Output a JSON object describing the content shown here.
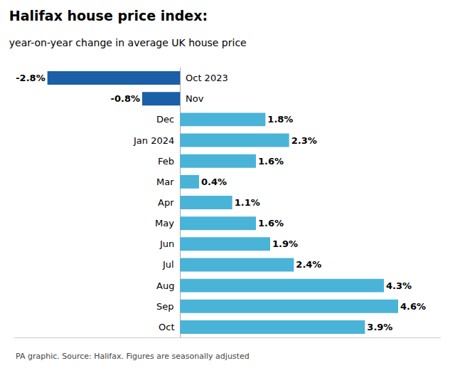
{
  "chart_data": {
    "type": "bar",
    "orientation": "horizontal",
    "title": "Halifax house price index:",
    "subtitle": "year-on-year change in average UK house price",
    "annotations": [
      "PA graphic. Source: Halifax. Figures are seasonally adjusted"
    ],
    "categories": [
      "Oct 2023",
      "Nov",
      "Dec",
      "Jan 2024",
      "Feb",
      "Mar",
      "Apr",
      "May",
      "Jun",
      "Jul",
      "Aug",
      "Sep",
      "Oct"
    ],
    "values": [
      -2.8,
      -0.8,
      1.8,
      2.3,
      1.6,
      0.4,
      1.1,
      1.6,
      1.9,
      2.4,
      4.3,
      4.6,
      3.9
    ],
    "value_labels": [
      "-2.8%",
      "-0.8%",
      "1.8%",
      "2.3%",
      "1.6%",
      "0.4%",
      "1.1%",
      "1.6%",
      "1.9%",
      "2.4%",
      "4.3%",
      "4.6%",
      "3.9%"
    ],
    "colors": [
      "#1a5fa8",
      "#1a5fa8",
      "#4ab3d8",
      "#4ab3d8",
      "#4ab3d8",
      "#4ab3d8",
      "#4ab3d8",
      "#4ab3d8",
      "#4ab3d8",
      "#4ab3d8",
      "#4ab3d8",
      "#4ab3d8",
      "#4ab3d8"
    ],
    "xlim": [
      -3.5,
      5.5
    ],
    "data_labels": true,
    "tick_labels": false,
    "grid": false
  }
}
